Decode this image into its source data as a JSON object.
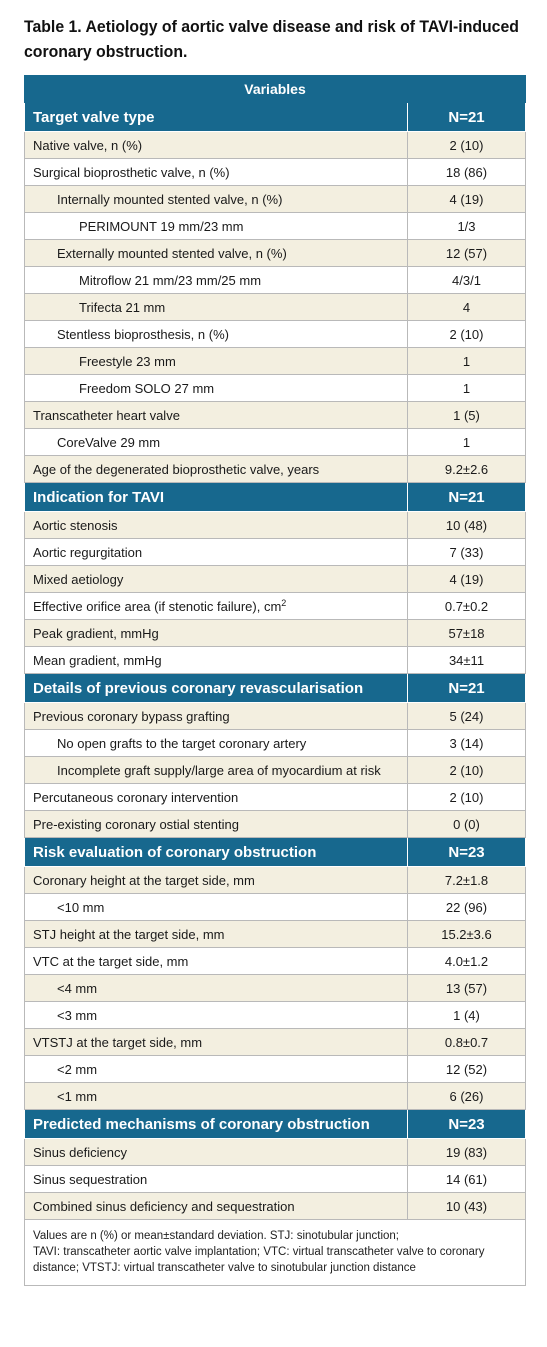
{
  "title": {
    "line1": "Table 1. Aetiology of aortic valve disease and risk of TAVI-induced",
    "line2": "coronary obstruction."
  },
  "header": "Variables",
  "sections": [
    {
      "title": "Target valve type",
      "n": "N=21",
      "rows": [
        {
          "label": "Native valve, n (%)",
          "value": "2 (10)",
          "indent": 0
        },
        {
          "label": "Surgical bioprosthetic valve, n (%)",
          "value": "18 (86)",
          "indent": 0
        },
        {
          "label": "Internally mounted stented valve, n (%)",
          "value": "4 (19)",
          "indent": 1
        },
        {
          "label": "PERIMOUNT 19 mm/23 mm",
          "value": "1/3",
          "indent": 2
        },
        {
          "label": "Externally mounted stented valve, n (%)",
          "value": "12 (57)",
          "indent": 1
        },
        {
          "label": "Mitroflow 21 mm/23 mm/25 mm",
          "value": "4/3/1",
          "indent": 2
        },
        {
          "label": "Trifecta 21 mm",
          "value": "4",
          "indent": 2
        },
        {
          "label": "Stentless bioprosthesis, n (%)",
          "value": "2 (10)",
          "indent": 1
        },
        {
          "label": "Freestyle 23 mm",
          "value": "1",
          "indent": 2
        },
        {
          "label": "Freedom SOLO 27 mm",
          "value": "1",
          "indent": 2
        },
        {
          "label": "Transcatheter heart valve",
          "value": "1 (5)",
          "indent": 0
        },
        {
          "label": "CoreValve 29 mm",
          "value": "1",
          "indent": 1
        },
        {
          "label": "Age of the degenerated bioprosthetic valve, years",
          "value": "9.2±2.6",
          "indent": 0
        }
      ]
    },
    {
      "title": "Indication for TAVI",
      "n": "N=21",
      "rows": [
        {
          "label": "Aortic stenosis",
          "value": "10 (48)",
          "indent": 0
        },
        {
          "label": "Aortic regurgitation",
          "value": "7 (33)",
          "indent": 0
        },
        {
          "label": "Mixed aetiology",
          "value": "4 (19)",
          "indent": 0
        },
        {
          "label": "Effective orifice area (if stenotic failure), cm",
          "sup": "2",
          "value": "0.7±0.2",
          "indent": 0
        },
        {
          "label": "Peak gradient, mmHg",
          "value": "57±18",
          "indent": 0
        },
        {
          "label": "Mean gradient, mmHg",
          "value": "34±11",
          "indent": 0
        }
      ]
    },
    {
      "title": "Details of previous coronary revascularisation",
      "n": "N=21",
      "rows": [
        {
          "label": "Previous coronary bypass grafting",
          "value": "5 (24)",
          "indent": 0
        },
        {
          "label": "No open grafts to the target coronary artery",
          "value": "3 (14)",
          "indent": 1
        },
        {
          "label": "Incomplete graft supply/large area of myocardium at risk",
          "value": "2 (10)",
          "indent": 1
        },
        {
          "label": "Percutaneous coronary intervention",
          "value": "2 (10)",
          "indent": 0
        },
        {
          "label": "Pre-existing coronary ostial stenting",
          "value": "0 (0)",
          "indent": 0
        }
      ]
    },
    {
      "title": "Risk evaluation of coronary obstruction",
      "n": "N=23",
      "rows": [
        {
          "label": "Coronary height at the target side, mm",
          "value": "7.2±1.8",
          "indent": 0
        },
        {
          "label": "<10 mm",
          "value": "22 (96)",
          "indent": 1
        },
        {
          "label": "STJ height at the target side, mm",
          "value": "15.2±3.6",
          "indent": 0
        },
        {
          "label": "VTC at the target side, mm",
          "value": "4.0±1.2",
          "indent": 0
        },
        {
          "label": "<4 mm",
          "value": "13 (57)",
          "indent": 1
        },
        {
          "label": "<3 mm",
          "value": "1 (4)",
          "indent": 1
        },
        {
          "label": "VTSTJ at the target side, mm",
          "value": "0.8±0.7",
          "indent": 0
        },
        {
          "label": "<2 mm",
          "value": "12 (52)",
          "indent": 1
        },
        {
          "label": "<1 mm",
          "value": "6 (26)",
          "indent": 1
        }
      ]
    },
    {
      "title": "Predicted mechanisms of coronary obstruction",
      "n": "N=23",
      "rows": [
        {
          "label": "Sinus deficiency",
          "value": "19 (83)",
          "indent": 0
        },
        {
          "label": "Sinus sequestration",
          "value": "14 (61)",
          "indent": 0
        },
        {
          "label": "Combined sinus deficiency and sequestration",
          "value": "10 (43)",
          "indent": 0
        }
      ]
    }
  ],
  "footnote": {
    "line1": "Values are n (%) or mean±standard deviation. STJ: sinotubular junction;",
    "line2": "TAVI: transcatheter aortic valve implantation; VTC: virtual transcatheter valve to coronary distance; VTSTJ: virtual transcatheter valve to sinotubular junction distance"
  },
  "colors": {
    "header_bg": "#17688e",
    "band_bg": "#f3efe0",
    "border": "#b9b9b9"
  }
}
